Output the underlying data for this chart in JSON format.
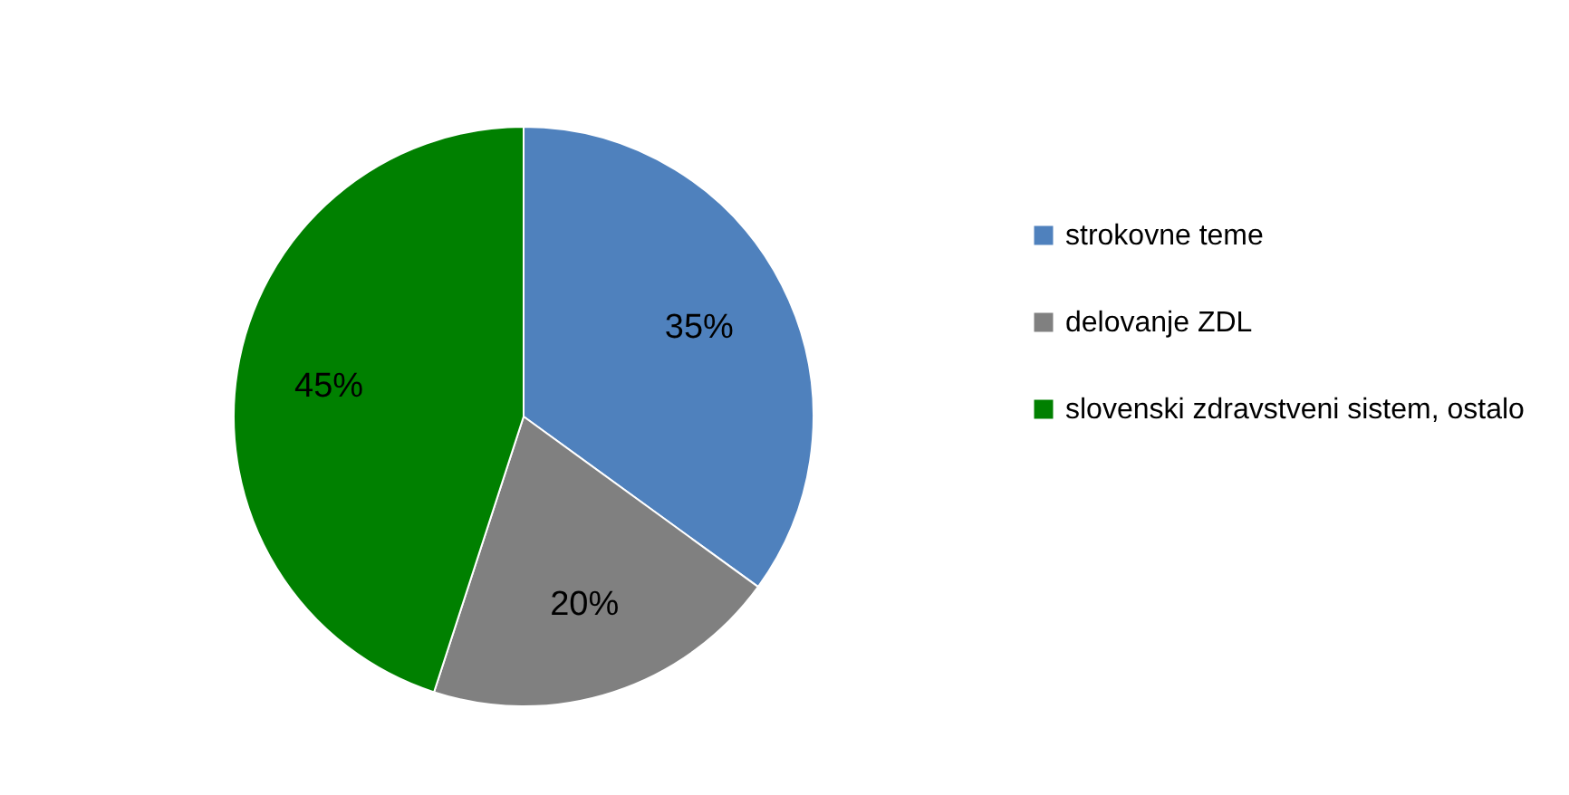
{
  "chart_data": {
    "type": "pie",
    "categories": [
      "strokovne teme",
      "delovanje ZDL",
      "slovenski zdravstveni sistem, ostalo"
    ],
    "values": [
      35,
      20,
      45
    ],
    "colors": [
      "#4f81bd",
      "#808080",
      "#008000"
    ],
    "value_labels": [
      "35%",
      "20%",
      "45%"
    ],
    "legend": "right"
  }
}
